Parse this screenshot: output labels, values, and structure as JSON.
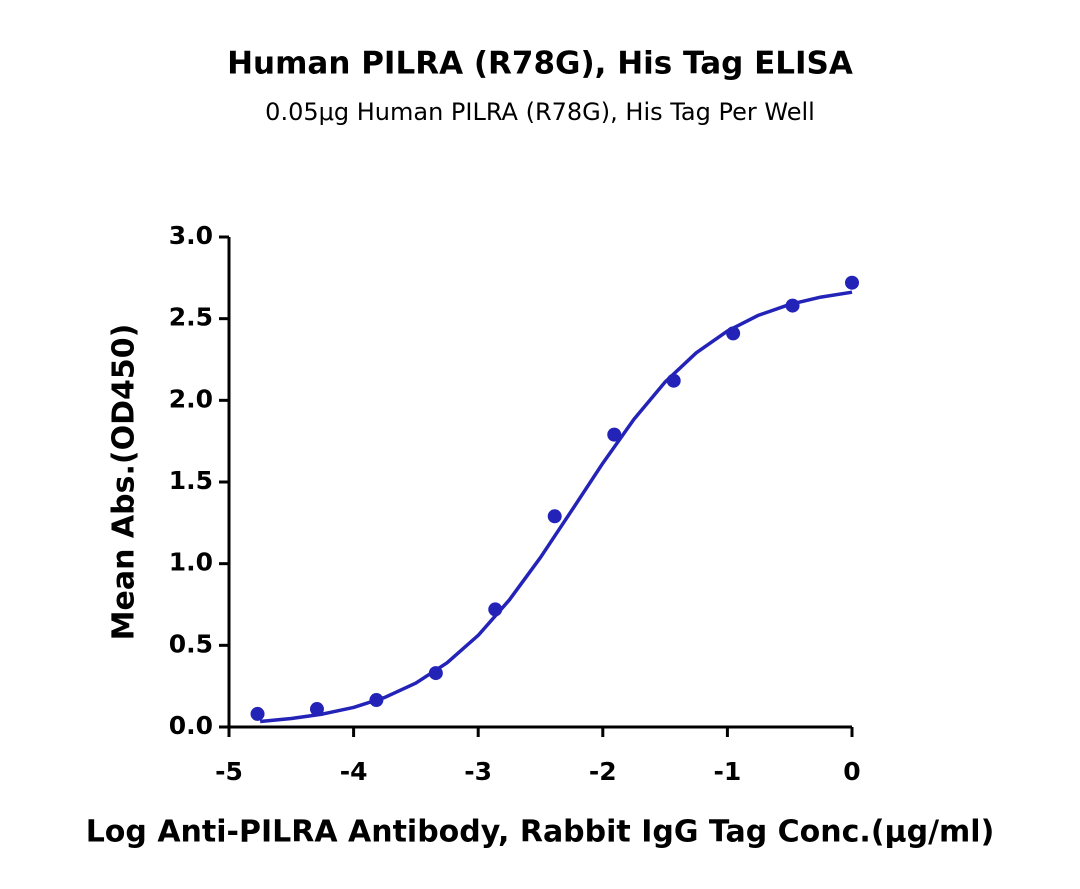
{
  "chart_data": {
    "type": "scatter",
    "title": "Human PILRA (R78G), His Tag ELISA",
    "subtitle": "0.05μg Human PILRA (R78G), His Tag Per Well",
    "x_label": "Log Anti-PILRA Antibody,  Rabbit IgG Tag Conc.(μg/ml)",
    "y_label": "Mean Abs.(OD450)",
    "series": [
      {
        "type": "scatter",
        "color": "#2323b8",
        "x": [
          -4.771,
          -4.294,
          -3.817,
          -3.34,
          -2.863,
          -2.386,
          -1.908,
          -1.431,
          -0.954,
          -0.477,
          0
        ],
        "values": [
          0.08,
          0.11,
          0.165,
          0.33,
          0.72,
          1.29,
          1.79,
          2.12,
          2.41,
          2.58,
          2.72
        ]
      },
      {
        "type": "line",
        "color": "#2323b8",
        "x": [
          -4.75,
          -4.5,
          -4.25,
          -4.0,
          -3.75,
          -3.5,
          -3.25,
          -3.0,
          -2.75,
          -2.5,
          -2.25,
          -2.0,
          -1.75,
          -1.5,
          -1.25,
          -1.0,
          -0.75,
          -0.5,
          -0.25,
          0
        ],
        "values": [
          0.034,
          0.052,
          0.079,
          0.12,
          0.181,
          0.269,
          0.393,
          0.561,
          0.778,
          1.038,
          1.325,
          1.615,
          1.884,
          2.112,
          2.291,
          2.424,
          2.521,
          2.587,
          2.632,
          2.662
        ]
      }
    ],
    "xlim": [
      -5,
      0
    ],
    "xticks": [
      -5,
      -4,
      -3,
      -2,
      -1,
      0
    ],
    "ylim": [
      0,
      3
    ],
    "yticks": [
      {
        "value": 0,
        "label": "0.0"
      },
      0.5,
      {
        "value": 1,
        "label": "1.0"
      },
      1.5,
      {
        "value": 2,
        "label": "2.0"
      },
      2.5,
      {
        "value": 3,
        "label": "3.0"
      }
    ]
  }
}
